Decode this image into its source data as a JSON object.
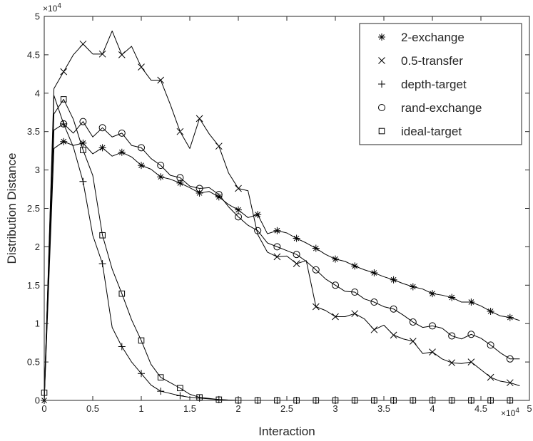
{
  "chart_data": {
    "type": "line",
    "xlabel": "Interaction",
    "ylabel": "Distribution Distance",
    "x_exponent": "×10^4",
    "y_exponent": "×10^4",
    "xlim": [
      0,
      50000
    ],
    "ylim": [
      0,
      50000
    ],
    "xticks": [
      0,
      5000,
      10000,
      15000,
      20000,
      25000,
      30000,
      35000,
      40000,
      45000,
      50000
    ],
    "xtick_labels": [
      "0",
      "0.5",
      "1",
      "1.5",
      "2",
      "2.5",
      "3",
      "3.5",
      "4",
      "4.5",
      "5"
    ],
    "yticks": [
      0,
      5000,
      10000,
      15000,
      20000,
      25000,
      30000,
      35000,
      40000,
      45000,
      50000
    ],
    "ytick_labels": [
      "0",
      "0.5",
      "1",
      "1.5",
      "2",
      "2.5",
      "3",
      "3.5",
      "4",
      "4.5",
      "5"
    ],
    "grid": false,
    "legend_position": "top-right",
    "series": [
      {
        "name": "2-exchange",
        "marker": "asterisk",
        "x": [
          0,
          1000,
          2000,
          3000,
          4000,
          5000,
          6000,
          7000,
          8000,
          9000,
          10000,
          11000,
          12000,
          13000,
          14000,
          15000,
          16000,
          17000,
          18000,
          19000,
          20000,
          21000,
          22000,
          23000,
          24000,
          25000,
          26000,
          27000,
          28000,
          29000,
          30000,
          31000,
          32000,
          33000,
          34000,
          35000,
          36000,
          37000,
          38000,
          39000,
          40000,
          41000,
          42000,
          43000,
          44000,
          45000,
          46000,
          47000,
          48000,
          49000
        ],
        "y": [
          0,
          32800,
          33700,
          33200,
          33500,
          32100,
          32900,
          31800,
          32300,
          31700,
          30600,
          30100,
          29100,
          28800,
          28300,
          27700,
          27000,
          27200,
          26500,
          25500,
          24800,
          23800,
          24200,
          21700,
          22100,
          21800,
          21100,
          20500,
          19800,
          19000,
          18400,
          18100,
          17500,
          17000,
          16600,
          16100,
          15700,
          15200,
          14800,
          14500,
          13900,
          13700,
          13400,
          12800,
          12800,
          12300,
          11600,
          11000,
          10800,
          10400
        ],
        "marker_x": [
          0,
          2000,
          4000,
          6000,
          8000,
          10000,
          12000,
          14000,
          16000,
          18000,
          20000,
          22000,
          24000,
          26000,
          28000,
          30000,
          32000,
          34000,
          36000,
          38000,
          40000,
          42000,
          44000,
          46000,
          48000
        ]
      },
      {
        "name": "0.5-transfer",
        "marker": "x",
        "x": [
          0,
          1000,
          2000,
          3000,
          4000,
          5000,
          6000,
          7000,
          8000,
          9000,
          10000,
          11000,
          12000,
          13000,
          14000,
          15000,
          16000,
          17000,
          18000,
          19000,
          20000,
          21000,
          22000,
          23000,
          24000,
          25000,
          26000,
          27000,
          28000,
          29000,
          30000,
          31000,
          32000,
          33000,
          34000,
          35000,
          36000,
          37000,
          38000,
          39000,
          40000,
          41000,
          42000,
          43000,
          44000,
          45000,
          46000,
          47000,
          48000,
          49000
        ],
        "y": [
          0,
          40600,
          42800,
          45000,
          46400,
          45100,
          45100,
          48100,
          45000,
          46100,
          43400,
          41700,
          41700,
          38500,
          35000,
          32800,
          36700,
          34700,
          33100,
          29600,
          27600,
          27300,
          21600,
          19300,
          18700,
          18800,
          17800,
          18200,
          12200,
          11700,
          10900,
          10900,
          11300,
          10600,
          9200,
          9800,
          8500,
          8000,
          7700,
          6100,
          6300,
          5400,
          4900,
          4800,
          5000,
          4000,
          3000,
          2500,
          2300,
          1900
        ],
        "marker_x": [
          2000,
          4000,
          6000,
          8000,
          10000,
          12000,
          14000,
          16000,
          18000,
          20000,
          24000,
          26000,
          28000,
          30000,
          32000,
          34000,
          36000,
          38000,
          40000,
          42000,
          44000,
          46000,
          48000
        ]
      },
      {
        "name": "depth-target",
        "marker": "plus",
        "x": [
          0,
          1000,
          2000,
          3000,
          4000,
          5000,
          6000,
          7000,
          8000,
          9000,
          10000,
          11000,
          12000,
          13000,
          14000,
          15000,
          16000,
          17000,
          18000,
          19000,
          20000,
          22000,
          24000,
          26000,
          28000,
          30000,
          32000,
          34000,
          36000,
          38000,
          40000,
          42000,
          44000,
          46000,
          48000
        ],
        "y": [
          0,
          39700,
          36000,
          33000,
          28500,
          21500,
          17800,
          9500,
          7000,
          5000,
          3500,
          2000,
          1200,
          900,
          600,
          400,
          300,
          200,
          100,
          50,
          0,
          0,
          0,
          0,
          0,
          0,
          0,
          0,
          0,
          0,
          0,
          0,
          0,
          0,
          0
        ],
        "marker_x": [
          0,
          2000,
          4000,
          6000,
          8000,
          10000,
          12000,
          14000,
          16000,
          18000,
          20000,
          22000,
          24000,
          26000,
          28000,
          30000,
          32000,
          34000,
          36000,
          38000,
          40000,
          42000,
          44000,
          46000,
          48000
        ]
      },
      {
        "name": "rand-exchange",
        "marker": "circle",
        "x": [
          0,
          1000,
          2000,
          3000,
          4000,
          5000,
          6000,
          7000,
          8000,
          9000,
          10000,
          11000,
          12000,
          13000,
          14000,
          15000,
          16000,
          17000,
          18000,
          19000,
          20000,
          21000,
          22000,
          23000,
          24000,
          25000,
          26000,
          27000,
          28000,
          29000,
          30000,
          31000,
          32000,
          33000,
          34000,
          35000,
          36000,
          37000,
          38000,
          39000,
          40000,
          41000,
          42000,
          43000,
          44000,
          45000,
          46000,
          47000,
          48000,
          49000
        ],
        "y": [
          0,
          35200,
          36000,
          34800,
          36300,
          34300,
          35500,
          34300,
          34800,
          33200,
          32900,
          31500,
          30600,
          29300,
          29000,
          27900,
          27600,
          27700,
          26800,
          25200,
          23900,
          22800,
          22100,
          20500,
          20000,
          19500,
          19000,
          18100,
          17000,
          15800,
          15000,
          14200,
          14100,
          13200,
          12800,
          12200,
          11900,
          11100,
          10200,
          9500,
          9700,
          9400,
          8400,
          8000,
          8600,
          8100,
          7200,
          6200,
          5400,
          5400
        ],
        "marker_x": [
          2000,
          4000,
          6000,
          8000,
          10000,
          12000,
          14000,
          16000,
          18000,
          20000,
          22000,
          24000,
          26000,
          28000,
          30000,
          32000,
          34000,
          36000,
          38000,
          40000,
          42000,
          44000,
          46000,
          48000
        ]
      },
      {
        "name": "ideal-target",
        "marker": "square",
        "x": [
          0,
          1000,
          2000,
          3000,
          4000,
          5000,
          6000,
          7000,
          8000,
          9000,
          10000,
          11000,
          12000,
          13000,
          14000,
          15000,
          16000,
          17000,
          18000,
          19000,
          20000,
          22000,
          24000,
          26000,
          28000,
          30000,
          32000,
          34000,
          36000,
          38000,
          40000,
          42000,
          44000,
          46000,
          48000
        ],
        "y": [
          1000,
          37300,
          39200,
          36600,
          32600,
          29300,
          21500,
          17100,
          13900,
          10500,
          7800,
          4700,
          3000,
          2300,
          1600,
          800,
          400,
          250,
          100,
          50,
          0,
          0,
          0,
          0,
          0,
          0,
          0,
          0,
          0,
          0,
          0,
          0,
          0,
          0,
          0
        ],
        "marker_x": [
          0,
          2000,
          4000,
          6000,
          8000,
          10000,
          12000,
          14000,
          16000,
          18000,
          20000,
          22000,
          24000,
          26000,
          28000,
          30000,
          32000,
          34000,
          36000,
          38000,
          40000,
          42000,
          44000,
          46000,
          48000
        ]
      }
    ]
  }
}
